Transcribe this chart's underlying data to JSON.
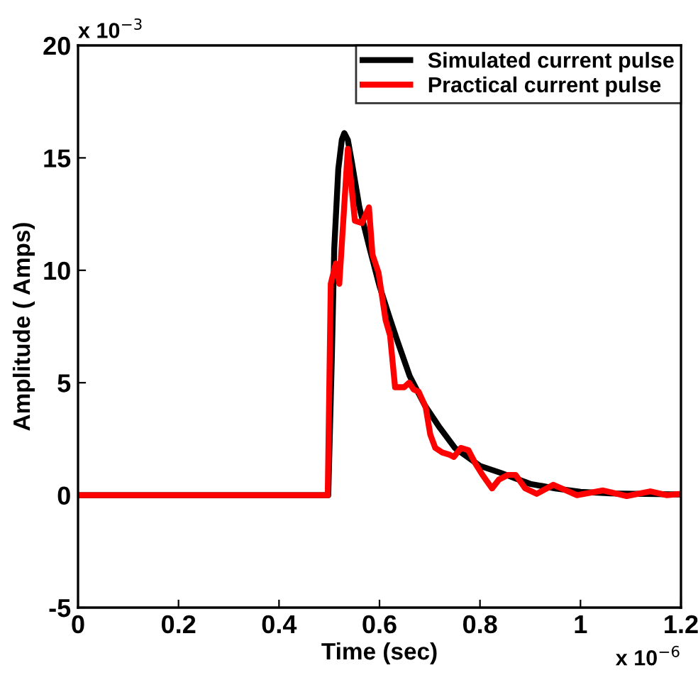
{
  "chart_data": {
    "type": "line",
    "xlabel": "Time (sec)",
    "ylabel": "Amplitude ( Amps)",
    "xlim": [
      0,
      1.2
    ],
    "ylim": [
      -5,
      20
    ],
    "xticks": [
      0,
      0.2,
      0.4,
      0.6,
      0.8,
      1,
      1.2
    ],
    "yticks": [
      -5,
      0,
      5,
      10,
      15,
      20
    ],
    "annotations": [
      "x 10$^{−3}$",
      "x 10$^{−6}$"
    ],
    "legend": "top right",
    "grid": false,
    "marker": "none",
    "line_style": "solid",
    "series": [
      {
        "name": "Simulated current pulse",
        "color": "#000000",
        "x": [
          0,
          0.498,
          0.505,
          0.51,
          0.518,
          0.525,
          0.53,
          0.537,
          0.545,
          0.56,
          0.58,
          0.6,
          0.62,
          0.635,
          0.66,
          0.69,
          0.72,
          0.75,
          0.8,
          0.84,
          0.9,
          0.95,
          1.0,
          1.06,
          1.2
        ],
        "values": [
          0,
          0,
          6,
          11,
          14.5,
          15.8,
          16.1,
          15.8,
          14.8,
          12.8,
          11,
          9.3,
          7.9,
          6.9,
          5.3,
          4,
          3,
          2.1,
          1.3,
          1,
          0.5,
          0.3,
          0.15,
          0.08,
          0.03
        ]
      },
      {
        "name": "Practical current pulse",
        "color": "#ff0000",
        "x": [
          0,
          0.497,
          0.503,
          0.513,
          0.52,
          0.537,
          0.551,
          0.565,
          0.579,
          0.586,
          0.598,
          0.612,
          0.621,
          0.631,
          0.649,
          0.659,
          0.668,
          0.678,
          0.692,
          0.701,
          0.711,
          0.725,
          0.739,
          0.748,
          0.762,
          0.777,
          0.791,
          0.805,
          0.824,
          0.838,
          0.856,
          0.871,
          0.89,
          0.913,
          0.946,
          0.993,
          1.045,
          1.092,
          1.139,
          1.172,
          1.2
        ],
        "values": [
          0,
          0,
          9.4,
          10.3,
          9.4,
          15.4,
          12.2,
          12.1,
          12.8,
          10.7,
          9.9,
          7.8,
          7.1,
          4.8,
          4.8,
          5,
          4.7,
          4.6,
          3.9,
          2.7,
          2.1,
          1.9,
          1.8,
          1.7,
          2.1,
          2,
          1.4,
          0.9,
          0.3,
          0.7,
          0.9,
          0.9,
          0.3,
          0.06,
          0.46,
          0,
          0.21,
          -0.04,
          0.17,
          0,
          0.06
        ]
      }
    ]
  }
}
